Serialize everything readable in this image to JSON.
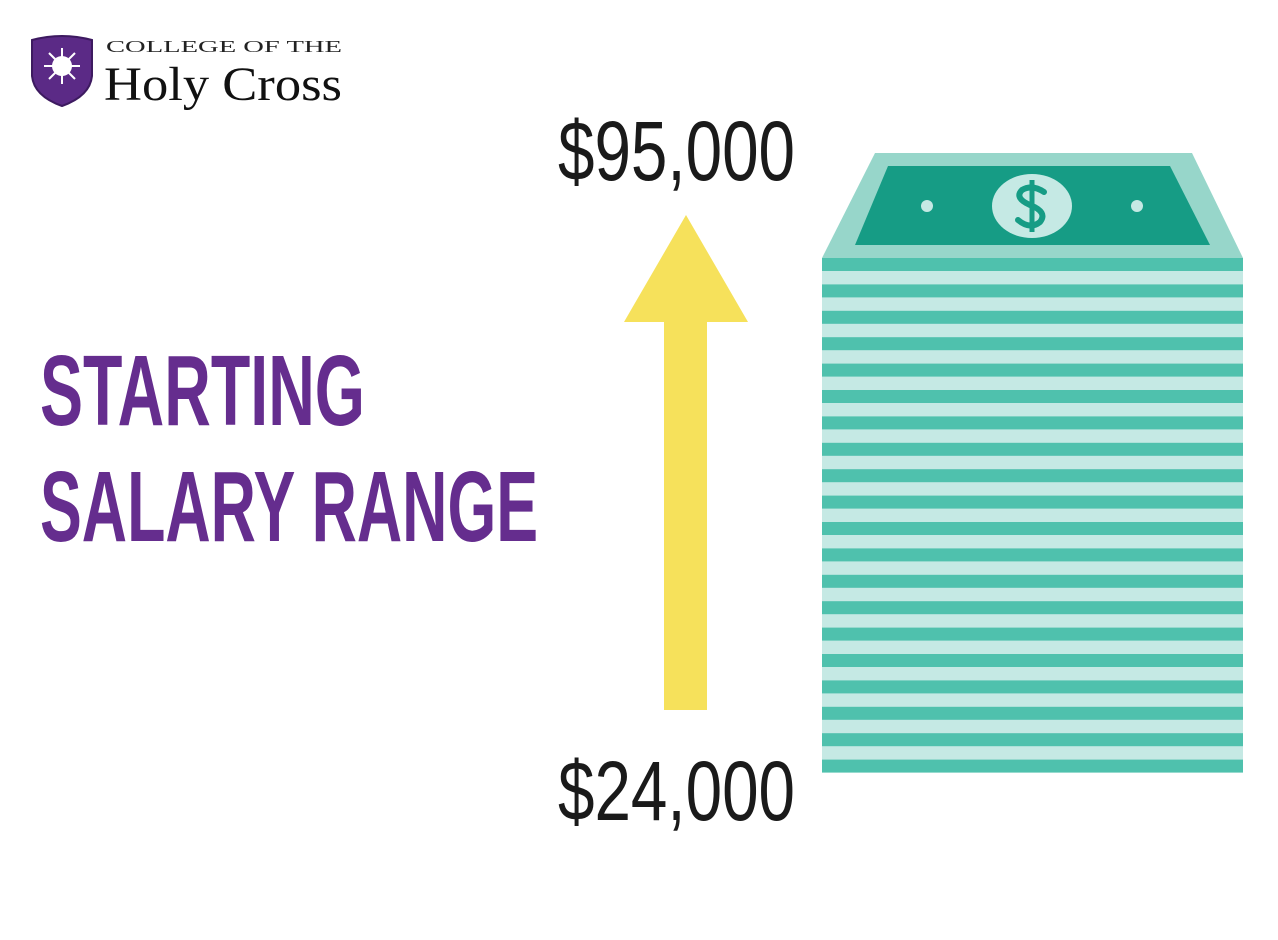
{
  "logo": {
    "line1": "COLLEGE OF THE",
    "line2": "Holy Cross"
  },
  "title": [
    "STARTING",
    "SALARY RANGE"
  ],
  "range": {
    "high": "$95,000",
    "low": "$24,000"
  }
}
